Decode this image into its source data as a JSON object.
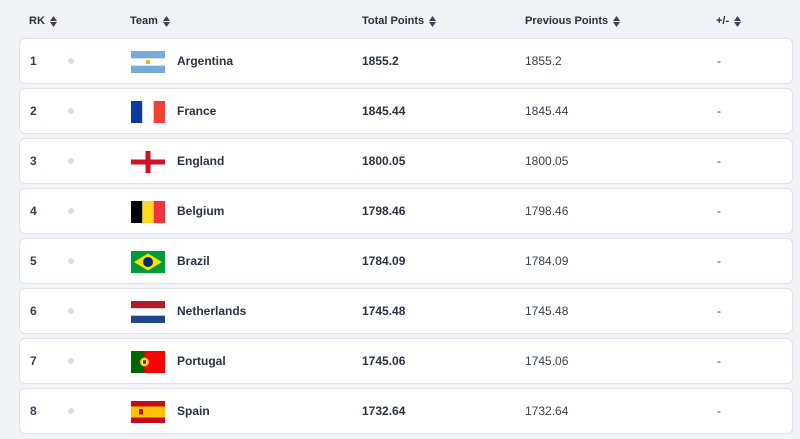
{
  "header": {
    "rk": "RK",
    "team": "Team",
    "total_points": "Total Points",
    "previous_points": "Previous Points",
    "change": "+/-"
  },
  "colors": {
    "background": "#f1f3f7",
    "row_background": "#ffffff",
    "row_border": "#dfe3ea",
    "text": "#2a2f3a"
  },
  "rows": [
    {
      "rank": "1",
      "team": "Argentina",
      "flag": "argentina-flag",
      "total": "1855.2",
      "previous": "1855.2",
      "change": "-"
    },
    {
      "rank": "2",
      "team": "France",
      "flag": "france-flag",
      "total": "1845.44",
      "previous": "1845.44",
      "change": "-"
    },
    {
      "rank": "3",
      "team": "England",
      "flag": "england-flag",
      "total": "1800.05",
      "previous": "1800.05",
      "change": "-"
    },
    {
      "rank": "4",
      "team": "Belgium",
      "flag": "belgium-flag",
      "total": "1798.46",
      "previous": "1798.46",
      "change": "-"
    },
    {
      "rank": "5",
      "team": "Brazil",
      "flag": "brazil-flag",
      "total": "1784.09",
      "previous": "1784.09",
      "change": "-"
    },
    {
      "rank": "6",
      "team": "Netherlands",
      "flag": "netherlands-flag",
      "total": "1745.48",
      "previous": "1745.48",
      "change": "-"
    },
    {
      "rank": "7",
      "team": "Portugal",
      "flag": "portugal-flag",
      "total": "1745.06",
      "previous": "1745.06",
      "change": "-"
    },
    {
      "rank": "8",
      "team": "Spain",
      "flag": "spain-flag",
      "total": "1732.64",
      "previous": "1732.64",
      "change": "-"
    }
  ]
}
